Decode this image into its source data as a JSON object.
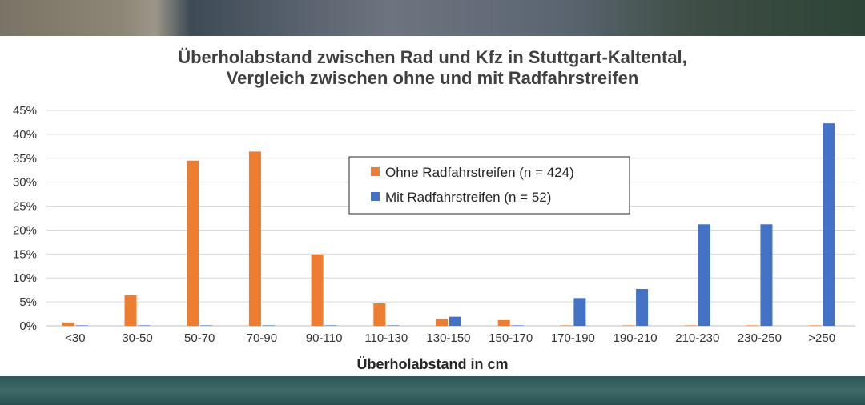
{
  "colors": {
    "ohne": "#ED7D31",
    "mit": "#4472C4",
    "grid": "#d9d9d9",
    "axis": "#bfbfbf"
  },
  "chart_data": {
    "type": "bar",
    "title_line1": "Überholabstand zwischen Rad und Kfz in Stuttgart-Kaltental,",
    "title_line2": "Vergleich zwischen ohne und mit Radfahrstreifen",
    "xlabel": "Überholabstand in cm",
    "ylabel": "",
    "ylim": [
      0,
      45
    ],
    "yticks": [
      "0%",
      "5%",
      "10%",
      "15%",
      "20%",
      "25%",
      "30%",
      "35%",
      "40%",
      "45%"
    ],
    "grid": true,
    "legend_position": "center",
    "categories": [
      "<30",
      "30-50",
      "50-70",
      "70-90",
      "90-110",
      "110-130",
      "130-150",
      "150-170",
      "170-190",
      "190-210",
      "210-230",
      "230-250",
      ">250"
    ],
    "series": [
      {
        "name": "Ohne Radfahrstreifen (n = 424)",
        "color_key": "ohne",
        "values": [
          0.7,
          6.4,
          34.5,
          36.4,
          14.9,
          4.7,
          1.4,
          1.2,
          0.1,
          0.1,
          0.1,
          0.1,
          0.1
        ]
      },
      {
        "name": "Mit Radfahrstreifen (n = 52)",
        "color_key": "mit",
        "values": [
          0.1,
          0.1,
          0.1,
          0.1,
          0.1,
          0.1,
          1.9,
          0.1,
          5.8,
          7.7,
          21.2,
          21.2,
          42.3
        ]
      }
    ]
  }
}
